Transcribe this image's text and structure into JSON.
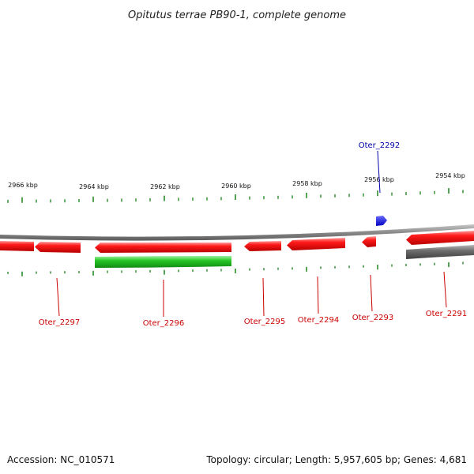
{
  "title": "Opitutus terrae PB90-1, complete genome",
  "footer": {
    "accession": "Accession: NC_010571",
    "summary": "Topology: circular; Length: 5,957,605 bp; Genes: 4,681"
  },
  "colors": {
    "forward_gene": "#ff0000",
    "reverse_gene": "#ff0000",
    "rna_gene": "#1fcc1f",
    "pseudo_gene": "#666666",
    "marker": "#0000ee",
    "backbone": "#8a8a8a",
    "tick": "#2a8a2a",
    "red_label": "#cc0000",
    "blue_label": "#0000aa"
  },
  "ruler": {
    "labels": [
      "2966 kbp",
      "2964 kbp",
      "2962 kbp",
      "2960 kbp",
      "2958 kbp",
      "2956 kbp",
      "2954 kbp"
    ]
  },
  "genes": [
    {
      "name": "Oter_2297",
      "color": "red_label"
    },
    {
      "name": "Oter_2296",
      "color": "red_label"
    },
    {
      "name": "Oter_2295",
      "color": "red_label"
    },
    {
      "name": "Oter_2294",
      "color": "red_label"
    },
    {
      "name": "Oter_2293",
      "color": "red_label"
    },
    {
      "name": "Oter_2291",
      "color": "red_label"
    },
    {
      "name": "Oter_2292",
      "color": "blue_label"
    }
  ]
}
